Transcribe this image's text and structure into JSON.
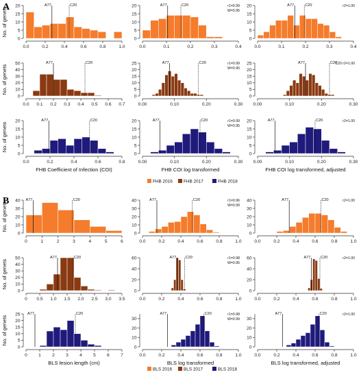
{
  "colors": {
    "y2016": "#f47c2c",
    "y2017": "#8a3a12",
    "y2018": "#1f1a7c"
  },
  "panels": [
    {
      "letter": "A"
    },
    {
      "letter": "B"
    }
  ],
  "legends": [
    {
      "items": [
        {
          "label": "FHB 2016",
          "color": "#f47c2c"
        },
        {
          "label": "FHB 2017",
          "color": "#8a3a12"
        },
        {
          "label": "FHB 2018",
          "color": "#1f1a7c"
        }
      ]
    },
    {
      "items": [
        {
          "label": "BLS 2016",
          "color": "#f47c2c"
        },
        {
          "label": "BLS 2017",
          "color": "#8a3a12"
        },
        {
          "label": "BLS 2018",
          "color": "#1f1a7c"
        }
      ]
    }
  ],
  "chart_data": [
    {
      "type": "bar",
      "color": "#f47c2c",
      "ylabel": "No. of genets",
      "xlim": [
        0,
        1.0
      ],
      "xticks": [
        "0.0",
        "0.2",
        "0.4",
        "0.6",
        "0.8",
        "1.0"
      ],
      "ylim": [
        0,
        20
      ],
      "yticks": [
        "0",
        "5",
        "10",
        "15",
        "20"
      ],
      "bin_width": 0.0833,
      "bin_starts": [
        0,
        0.0833,
        0.1667,
        0.25,
        0.3333,
        0.4167,
        0.5,
        0.5833,
        0.6667,
        0.75,
        0.8333,
        0.9167
      ],
      "values": [
        16,
        7,
        8,
        9,
        9,
        13,
        7,
        6,
        5,
        4,
        0,
        4
      ],
      "markers": [
        {
          "label": "A77",
          "x": 0.27,
          "style": "solid"
        },
        {
          "label": "C20",
          "x": 0.45,
          "style": "dotted"
        }
      ],
      "stats": [],
      "xlabel": ""
    },
    {
      "type": "bar",
      "color": "#f47c2c",
      "ylabel": "",
      "xlim": [
        0,
        0.4
      ],
      "xticks": [
        "0.0",
        "0.1",
        "0.2",
        "0.3",
        "0.4"
      ],
      "ylim": [
        0,
        20
      ],
      "yticks": [
        "0",
        "5",
        "10",
        "15",
        "20"
      ],
      "bin_width": 0.0333,
      "bin_starts": [
        0,
        0.0333,
        0.0667,
        0.1,
        0.1333,
        0.1667,
        0.2,
        0.2333,
        0.2667,
        0.3
      ],
      "values": [
        5,
        11,
        12,
        14,
        14,
        14,
        13,
        8,
        1,
        1
      ],
      "markers": [
        {
          "label": "A77",
          "x": 0.105,
          "style": "solid"
        },
        {
          "label": "C20",
          "x": 0.16,
          "style": "dotted"
        }
      ],
      "stats": [
        "r1=0.99",
        "W=0.95"
      ],
      "xlabel": ""
    },
    {
      "type": "bar",
      "color": "#f47c2c",
      "ylabel": "",
      "xlim": [
        0,
        0.4
      ],
      "xticks": [
        "0.0",
        "0.1",
        "0.2",
        "0.3",
        "0.4"
      ],
      "ylim": [
        0,
        20
      ],
      "yticks": [
        "0",
        "5",
        "10",
        "15",
        "20"
      ],
      "bin_width": 0.025,
      "bin_starts": [
        0,
        0.025,
        0.05,
        0.075,
        0.1,
        0.125,
        0.15,
        0.175,
        0.2,
        0.225,
        0.25,
        0.275,
        0.3,
        0.325
      ],
      "values": [
        2,
        4,
        8,
        11,
        11,
        14,
        8,
        14,
        12,
        12,
        9,
        8,
        4,
        1
      ],
      "markers": [
        {
          "label": "A77",
          "x": 0.155,
          "style": "solid"
        },
        {
          "label": "C20",
          "x": 0.195,
          "style": "dotted"
        }
      ],
      "stats": [
        "r2=1.00"
      ],
      "xlabel": ""
    },
    {
      "type": "bar",
      "color": "#8a3a12",
      "ylabel": "No. of genets",
      "xlim": [
        0,
        0.7
      ],
      "xticks": [
        "0.0",
        "0.1",
        "0.2",
        "0.3",
        "0.4",
        "0.5",
        "0.6",
        "0.7"
      ],
      "ylim": [
        0,
        50
      ],
      "yticks": [
        "0",
        "10",
        "20",
        "30",
        "40",
        "50"
      ],
      "bin_width": 0.05,
      "bin_starts": [
        0.05,
        0.1,
        0.15,
        0.2,
        0.25,
        0.3,
        0.35,
        0.4,
        0.45,
        0.5,
        0.55
      ],
      "values": [
        8,
        33,
        33,
        25,
        25,
        10,
        8,
        5,
        5,
        1,
        0
      ],
      "markers": [
        {
          "label": "A77",
          "x": 0.2,
          "style": "solid"
        },
        {
          "label": "C20",
          "x": 0.43,
          "style": "dotted"
        }
      ],
      "stats": [],
      "xlabel": ""
    },
    {
      "type": "bar",
      "color": "#8a3a12",
      "ylabel": "",
      "xlim": [
        0,
        0.3
      ],
      "xticks": [
        "0.00",
        "0.10",
        "0.20",
        "0.30"
      ],
      "ylim": [
        0,
        25
      ],
      "yticks": [
        "0",
        "5",
        "10",
        "15",
        "20",
        "25"
      ],
      "bin_width": 0.01,
      "bin_starts": [
        0.03,
        0.04,
        0.05,
        0.06,
        0.07,
        0.08,
        0.09,
        0.1,
        0.11,
        0.12,
        0.13,
        0.14,
        0.15,
        0.16,
        0.17,
        0.18
      ],
      "values": [
        1,
        2,
        5,
        10,
        16,
        19,
        15,
        17,
        12,
        10,
        6,
        4,
        2,
        2,
        1,
        1
      ],
      "markers": [
        {
          "label": "A77",
          "x": 0.085,
          "style": "solid"
        },
        {
          "label": "C20",
          "x": 0.175,
          "style": "dotted"
        }
      ],
      "stats": [
        "r1=0.99",
        "W=0.95"
      ],
      "xlabel": ""
    },
    {
      "type": "bar",
      "color": "#8a3a12",
      "ylabel": "",
      "xlim": [
        0,
        0.3
      ],
      "xticks": [
        "0.00",
        "0.10",
        "0.20",
        "0.30"
      ],
      "ylim": [
        0,
        25
      ],
      "yticks": [
        "0",
        "5",
        "10",
        "15",
        "20",
        "25"
      ],
      "bin_width": 0.01,
      "bin_starts": [
        0.08,
        0.09,
        0.1,
        0.11,
        0.12,
        0.13,
        0.14,
        0.15,
        0.16,
        0.17,
        0.18,
        0.19,
        0.2,
        0.21,
        0.22,
        0.23
      ],
      "values": [
        1,
        4,
        8,
        12,
        10,
        17,
        15,
        12,
        17,
        16,
        10,
        8,
        5,
        2,
        1,
        1
      ],
      "markers": [
        {
          "label": "A77",
          "x": 0.15,
          "style": "solid"
        },
        {
          "label": "C20",
          "x": 0.225,
          "style": "dotted"
        }
      ],
      "stats": [
        "C20 r2=1.00"
      ],
      "xlabel": ""
    },
    {
      "type": "bar",
      "color": "#1f1a7c",
      "ylabel": "No. of genets",
      "xlim": [
        0,
        0.8
      ],
      "xticks": [
        "0.0",
        "0.2",
        "0.4",
        "0.6",
        "0.8"
      ],
      "ylim": [
        0,
        20
      ],
      "yticks": [
        "0",
        "5",
        "10",
        "15",
        "20"
      ],
      "bin_width": 0.0667,
      "bin_starts": [
        0.0667,
        0.1333,
        0.2,
        0.2667,
        0.3333,
        0.4,
        0.4667,
        0.5333,
        0.6,
        0.6667
      ],
      "values": [
        2,
        3,
        8,
        9,
        5,
        9,
        10,
        8,
        3,
        1
      ],
      "markers": [
        {
          "label": "A77",
          "x": 0.19,
          "style": "solid"
        },
        {
          "label": "C20",
          "x": 0.53,
          "style": "dotted"
        }
      ],
      "stats": [],
      "xlabel": "FHB Coefficient of Infection (COI)"
    },
    {
      "type": "bar",
      "color": "#1f1a7c",
      "ylabel": "",
      "xlim": [
        0,
        0.3
      ],
      "xticks": [
        "0.00",
        "0.10",
        "0.20",
        "0.30"
      ],
      "ylim": [
        0,
        20
      ],
      "yticks": [
        "0",
        "5",
        "10",
        "15",
        "20"
      ],
      "bin_width": 0.025,
      "bin_starts": [
        0.025,
        0.05,
        0.075,
        0.1,
        0.125,
        0.15,
        0.175,
        0.2,
        0.225,
        0.25
      ],
      "values": [
        1,
        2,
        5,
        7,
        12,
        15,
        13,
        7,
        3,
        1
      ],
      "markers": [
        {
          "label": "A77",
          "x": 0.055,
          "style": "solid"
        },
        {
          "label": "C20",
          "x": 0.18,
          "style": "dotted"
        }
      ],
      "stats": [
        "r1=0.99",
        "W=0.95"
      ],
      "xlabel": "FHB COI log transformed"
    },
    {
      "type": "bar",
      "color": "#1f1a7c",
      "ylabel": "",
      "xlim": [
        0,
        0.3
      ],
      "xticks": [
        "0.00",
        "0.10",
        "0.20",
        "0.30"
      ],
      "ylim": [
        0,
        20
      ],
      "yticks": [
        "0",
        "5",
        "10",
        "15",
        "20"
      ],
      "bin_width": 0.025,
      "bin_starts": [
        0.025,
        0.05,
        0.075,
        0.1,
        0.125,
        0.15,
        0.175,
        0.2,
        0.225,
        0.25
      ],
      "values": [
        1,
        2,
        5,
        7,
        12,
        16,
        15,
        8,
        3,
        1
      ],
      "markers": [
        {
          "label": "A77",
          "x": 0.055,
          "style": "solid"
        },
        {
          "label": "C20",
          "x": 0.18,
          "style": "dotted"
        }
      ],
      "stats": [
        "r2=1.00"
      ],
      "xlabel": "FHB COI log transformed, adjusted"
    },
    {
      "type": "bar",
      "color": "#f47c2c",
      "ylabel": "No. of genets",
      "xlim": [
        0,
        6
      ],
      "xticks": [
        "0",
        "1",
        "2",
        "3",
        "4",
        "5",
        "6"
      ],
      "ylim": [
        0,
        40
      ],
      "yticks": [
        "0",
        "10",
        "20",
        "30",
        "40"
      ],
      "bin_width": 1.0,
      "bin_starts": [
        0,
        1,
        2,
        3,
        4,
        5
      ],
      "values": [
        22,
        37,
        28,
        16,
        8,
        3
      ],
      "markers": [
        {
          "label": "A77",
          "x": 0.45,
          "style": "solid"
        },
        {
          "label": "C20",
          "x": 2.9,
          "style": "dotted"
        }
      ],
      "stats": [],
      "xlabel": ""
    },
    {
      "type": "bar",
      "color": "#f47c2c",
      "ylabel": "",
      "xlim": [
        0,
        1.0
      ],
      "xticks": [
        "0.0",
        "0.2",
        "0.4",
        "0.6",
        "0.8",
        "1.0"
      ],
      "ylim": [
        0,
        40
      ],
      "yticks": [
        "0",
        "10",
        "20",
        "30",
        "40"
      ],
      "bin_width": 0.0667,
      "bin_starts": [
        0.0667,
        0.1333,
        0.2,
        0.2667,
        0.3333,
        0.4,
        0.4667,
        0.5333,
        0.6,
        0.6667,
        0.7333
      ],
      "values": [
        2,
        5,
        8,
        13,
        14,
        20,
        26,
        22,
        11,
        4,
        1
      ],
      "markers": [
        {
          "label": "A77",
          "x": 0.15,
          "style": "solid"
        },
        {
          "label": "C20",
          "x": 0.52,
          "style": "dotted"
        }
      ],
      "stats": [
        "r1=0.96",
        "W=0.99"
      ],
      "xlabel": ""
    },
    {
      "type": "bar",
      "color": "#f47c2c",
      "ylabel": "",
      "xlim": [
        0,
        1.0
      ],
      "xticks": [
        "0.0",
        "0.2",
        "0.4",
        "0.6",
        "0.8",
        "1.0"
      ],
      "ylim": [
        0,
        40
      ],
      "yticks": [
        "0",
        "10",
        "20",
        "30",
        "40"
      ],
      "bin_width": 0.0667,
      "bin_starts": [
        0.2,
        0.2667,
        0.3333,
        0.4,
        0.4667,
        0.5333,
        0.6,
        0.6667,
        0.7333,
        0.8,
        0.8667
      ],
      "values": [
        2,
        3,
        8,
        13,
        19,
        24,
        24,
        22,
        16,
        7,
        2
      ],
      "markers": [
        {
          "label": "A77",
          "x": 0.33,
          "style": "solid"
        },
        {
          "label": "C20",
          "x": 0.66,
          "style": "dotted"
        }
      ],
      "stats": [
        "r2=1.00"
      ],
      "xlabel": ""
    },
    {
      "type": "bar",
      "color": "#8a3a12",
      "ylabel": "No. of genets",
      "xlim": [
        0,
        3.5
      ],
      "xticks": [
        "0",
        "0.5",
        "1.0",
        "1.5",
        "2.0",
        "2.5",
        "3.0",
        "3.5"
      ],
      "ylim": [
        0,
        50
      ],
      "yticks": [
        "0",
        "10",
        "20",
        "30",
        "40",
        "50"
      ],
      "bin_width": 0.25,
      "bin_starts": [
        0.5,
        0.75,
        1.0,
        1.25,
        1.5,
        1.75,
        2.0,
        2.25,
        2.5,
        2.75,
        3.0
      ],
      "values": [
        2,
        10,
        25,
        50,
        50,
        20,
        7,
        2,
        1,
        0,
        1
      ],
      "markers": [
        {
          "label": "A77",
          "x": 1.15,
          "style": "solid"
        },
        {
          "label": "C20",
          "x": 1.72,
          "style": "dotted"
        }
      ],
      "stats": [],
      "xlabel": ""
    },
    {
      "type": "bar",
      "color": "#8a3a12",
      "ylabel": "",
      "xlim": [
        0,
        1.0
      ],
      "xticks": [
        "0.0",
        "0.2",
        "0.4",
        "0.6",
        "0.8",
        "1.0"
      ],
      "ylim": [
        0,
        60
      ],
      "yticks": [
        "0",
        "20",
        "40",
        "60"
      ],
      "bin_width": 0.025,
      "bin_starts": [
        0.3,
        0.325,
        0.35,
        0.375,
        0.4,
        0.425
      ],
      "values": [
        5,
        20,
        60,
        56,
        20,
        3
      ],
      "markers": [
        {
          "label": "A77",
          "x": 0.36,
          "style": "solid"
        },
        {
          "label": "C20",
          "x": 0.44,
          "style": "dotted"
        }
      ],
      "stats": [
        "r1=0.98",
        "W=0.95"
      ],
      "xlabel": ""
    },
    {
      "type": "bar",
      "color": "#8a3a12",
      "ylabel": "",
      "xlim": [
        0,
        1.0
      ],
      "xticks": [
        "0.0",
        "0.2",
        "0.4",
        "0.6",
        "0.8",
        "1.0"
      ],
      "ylim": [
        0,
        60
      ],
      "yticks": [
        "0",
        "20",
        "40",
        "60"
      ],
      "bin_width": 0.025,
      "bin_starts": [
        0.525,
        0.55,
        0.575,
        0.6,
        0.625,
        0.65
      ],
      "values": [
        5,
        20,
        58,
        55,
        22,
        4
      ],
      "markers": [
        {
          "label": "A77",
          "x": 0.56,
          "style": "solid"
        },
        {
          "label": "C20",
          "x": 0.65,
          "style": "dotted"
        }
      ],
      "stats": [
        "r2=1.00"
      ],
      "xlabel": ""
    },
    {
      "type": "bar",
      "color": "#1f1a7c",
      "ylabel": "No. of genets",
      "xlim": [
        0,
        7
      ],
      "xticks": [
        "0",
        "1",
        "2",
        "3",
        "4",
        "5",
        "6",
        "7"
      ],
      "ylim": [
        0,
        25
      ],
      "yticks": [
        "0",
        "5",
        "10",
        "15",
        "20",
        "25"
      ],
      "bin_width": 0.5,
      "bin_starts": [
        1.0,
        1.5,
        2.0,
        2.5,
        3.0,
        3.5,
        4.0,
        4.5,
        5.0
      ],
      "values": [
        1,
        12,
        15,
        13,
        20,
        10,
        5,
        2,
        1
      ],
      "markers": [
        {
          "label": "A77",
          "x": 0.65,
          "style": "solid"
        },
        {
          "label": "C20",
          "x": 3.6,
          "style": "dotted"
        }
      ],
      "stats": [],
      "xlabel": "BLS lesion length (cm)"
    },
    {
      "type": "bar",
      "color": "#1f1a7c",
      "ylabel": "",
      "xlim": [
        0,
        1.0
      ],
      "xticks": [
        "0.0",
        "0.2",
        "0.4",
        "0.6",
        "0.8",
        "1.0"
      ],
      "ylim": [
        0,
        35
      ],
      "yticks": [
        "0",
        "10",
        "20",
        "30"
      ],
      "bin_width": 0.05,
      "bin_starts": [
        0.3,
        0.35,
        0.4,
        0.45,
        0.5,
        0.55,
        0.6,
        0.65,
        0.7,
        0.75
      ],
      "values": [
        2,
        5,
        8,
        12,
        17,
        24,
        33,
        17,
        5,
        1
      ],
      "markers": [
        {
          "label": "A77",
          "x": 0.26,
          "style": "solid"
        },
        {
          "label": "C20",
          "x": 0.64,
          "style": "dotted"
        }
      ],
      "stats": [
        "r1=0.98",
        "W=0.99"
      ],
      "xlabel": "BLS log transformed"
    },
    {
      "type": "bar",
      "color": "#1f1a7c",
      "ylabel": "",
      "xlim": [
        0,
        1.0
      ],
      "xticks": [
        "0.0",
        "0.2",
        "0.4",
        "0.6",
        "0.8",
        "1.0"
      ],
      "ylim": [
        0,
        35
      ],
      "yticks": [
        "0",
        "10",
        "20",
        "30"
      ],
      "bin_width": 0.05,
      "bin_starts": [
        0.3,
        0.35,
        0.4,
        0.45,
        0.5,
        0.55,
        0.6,
        0.65,
        0.7,
        0.75
      ],
      "values": [
        2,
        4,
        8,
        12,
        15,
        24,
        33,
        18,
        5,
        1
      ],
      "markers": [
        {
          "label": "A77",
          "x": 0.26,
          "style": "solid"
        },
        {
          "label": "C20",
          "x": 0.64,
          "style": "dotted"
        }
      ],
      "stats": [
        "r2=1.00"
      ],
      "xlabel": "BLS log transformed, adjusted"
    }
  ]
}
